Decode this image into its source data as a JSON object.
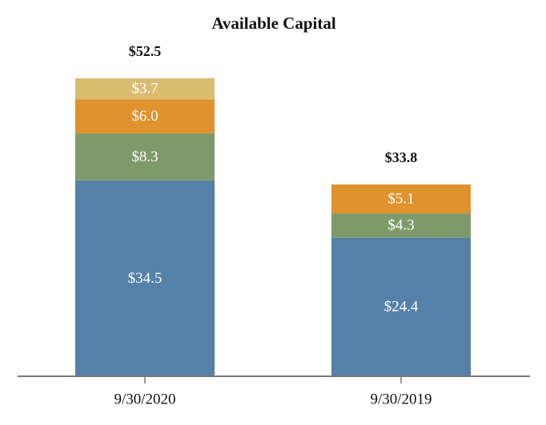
{
  "chart_data": {
    "type": "stacked_bar",
    "title": "Available Capital",
    "categories": [
      "9/30/2020",
      "9/30/2019"
    ],
    "series": [
      {
        "color": "#5580a8",
        "values": [
          34.5,
          24.4
        ],
        "value_labels": [
          "$34.5",
          "$24.4"
        ]
      },
      {
        "color": "#7f9a6a",
        "values": [
          8.3,
          4.3
        ],
        "value_labels": [
          "$8.3",
          "$4.3"
        ]
      },
      {
        "color": "#e0922e",
        "values": [
          6.0,
          5.1
        ],
        "value_labels": [
          "$6.0",
          "$5.1"
        ]
      },
      {
        "color": "#d9bc6e",
        "values": [
          3.7,
          null
        ],
        "value_labels": [
          "$3.7",
          null
        ]
      }
    ],
    "totals": {
      "values": [
        52.5,
        33.8
      ],
      "value_labels": [
        "$52.5",
        "$33.8"
      ]
    }
  }
}
